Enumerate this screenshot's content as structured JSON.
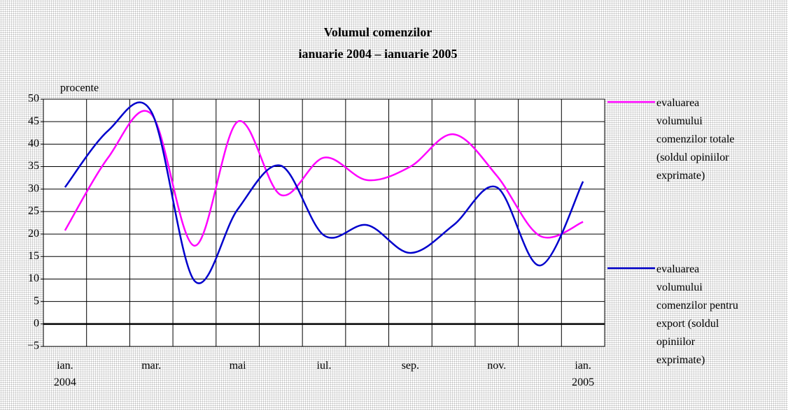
{
  "chart_data": {
    "type": "line",
    "title": "Volumul comenzilor",
    "subtitle": "ianuarie 2004 – ianuarie 2005",
    "y_label": "procente",
    "categories": [
      "ian. 2004",
      null,
      "mar.",
      null,
      "mai",
      null,
      "iul.",
      null,
      "sep.",
      null,
      "nov.",
      null,
      "ian. 2005"
    ],
    "series": [
      {
        "name": "evaluarea volumului comenzilor totale (soldul opiniilor exprimate)",
        "color": "#ff00ff",
        "values": [
          20.8,
          37,
          46.7,
          17.4,
          45,
          28.7,
          37,
          32,
          35,
          42.2,
          33,
          19.6,
          22.7
        ]
      },
      {
        "name": "evaluarea volumului comenzilor pentru export (soldul opiniilor exprimate)",
        "color": "#0000cc",
        "values": [
          30.4,
          43,
          47.2,
          9.6,
          25.5,
          35.2,
          19.7,
          22,
          15.8,
          22,
          30.4,
          13,
          31.7
        ]
      }
    ],
    "ylim": [
      -5,
      50
    ],
    "yticks": [
      {
        "value": -5,
        "label": "−5"
      },
      0,
      5,
      10,
      15,
      20,
      25,
      30,
      35,
      40,
      45,
      50
    ],
    "grid": true,
    "smooth": true,
    "legend": "right"
  }
}
